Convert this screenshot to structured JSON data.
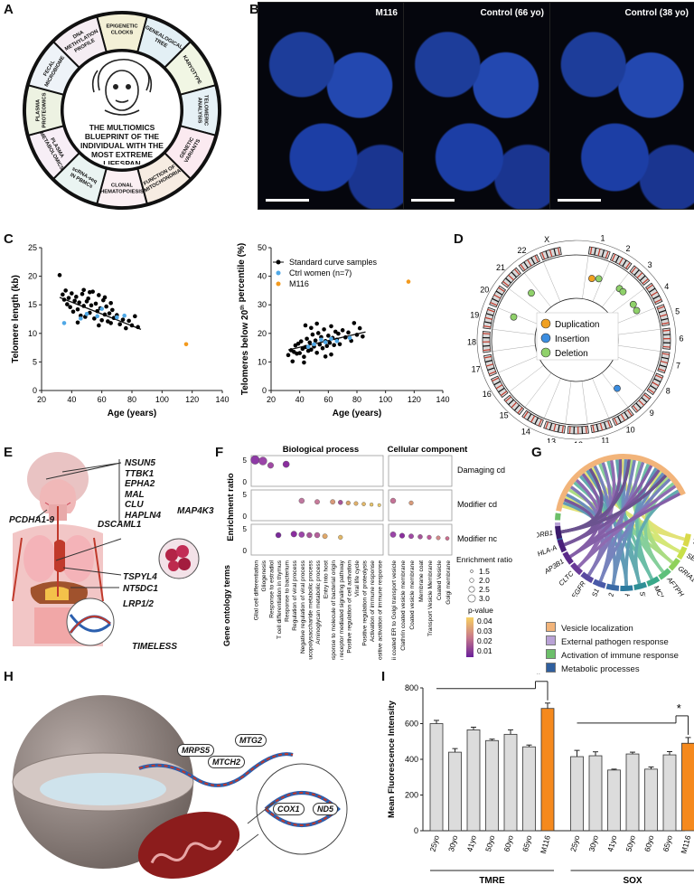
{
  "panel_letters": {
    "a": "A",
    "b": "B",
    "c": "C",
    "d": "D",
    "e": "E",
    "f": "F",
    "g": "G",
    "h": "H",
    "i": "I"
  },
  "panel_a": {
    "center_text": "THE MULTIOMICS BLUEPRINT OF THE INDIVIDUAL WITH THE MOST EXTREME LIFESPAN",
    "segments": [
      "EPIGENETIC CLOCKS",
      "GENEALOGICAL TREE",
      "KARYOTYPE",
      "TELOMERIC ANALYSIS",
      "GENETIC VARIANTS",
      "FUNCTION OF MITOCHONDRIA",
      "CLONAL HEMATOPOIESIS",
      "scRNA-seq IN PBMCs",
      "PLASMA METABOLOMICS",
      "PLASMA PROTEOMICS",
      "FECAL MICROBIOME",
      "DNA METHYLATION PROFILE"
    ]
  },
  "panel_b": {
    "images": [
      "M116",
      "Control (66 yo)",
      "Control (38 yo)"
    ]
  },
  "chart_data": [
    {
      "type": "scatter",
      "xlabel": "Age (years)",
      "ylabel": "Telomere length (kb)",
      "xlim": [
        20,
        140
      ],
      "ylim": [
        0,
        25
      ],
      "xticks": [
        20,
        40,
        60,
        80,
        100,
        120,
        140
      ],
      "yticks": [
        0,
        5,
        10,
        15,
        20,
        25
      ],
      "series": [
        {
          "name": "Standard curve samples",
          "color": "#000000",
          "points": [
            [
              32,
              20.2
            ],
            [
              34,
              16.8
            ],
            [
              35,
              15.9
            ],
            [
              36,
              17.5
            ],
            [
              37,
              15.1
            ],
            [
              38,
              16.2
            ],
            [
              39,
              14.6
            ],
            [
              40,
              17.0
            ],
            [
              41,
              13.8
            ],
            [
              42,
              15.7
            ],
            [
              43,
              16.4
            ],
            [
              44,
              14.2
            ],
            [
              45,
              15.4
            ],
            [
              46,
              13.1
            ],
            [
              47,
              16.9
            ],
            [
              48,
              14.8
            ],
            [
              49,
              12.9
            ],
            [
              50,
              15.6
            ],
            [
              51,
              16.1
            ],
            [
              52,
              13.6
            ],
            [
              53,
              14.9
            ],
            [
              54,
              17.3
            ],
            [
              55,
              12.6
            ],
            [
              56,
              15.2
            ],
            [
              57,
              13.9
            ],
            [
              58,
              16.7
            ],
            [
              59,
              14.4
            ],
            [
              60,
              12.3
            ],
            [
              61,
              15.8
            ],
            [
              62,
              13.3
            ],
            [
              63,
              14.7
            ],
            [
              64,
              12.1
            ],
            [
              65,
              13.5
            ],
            [
              66,
              11.8
            ],
            [
              67,
              14.1
            ],
            [
              68,
              12.7
            ],
            [
              70,
              13.2
            ],
            [
              72,
              11.6
            ],
            [
              74,
              12.4
            ],
            [
              76,
              10.9
            ],
            [
              78,
              12.2
            ],
            [
              80,
              11.4
            ],
            [
              82,
              13.0
            ],
            [
              84,
              11.1
            ],
            [
              44,
              11.9
            ],
            [
              48,
              17.6
            ],
            [
              52,
              17.2
            ],
            [
              58,
              11.4
            ],
            [
              62,
              16.3
            ],
            [
              66,
              15.3
            ]
          ]
        },
        {
          "name": "Ctrl women (n=7)",
          "color": "#4fa8e6",
          "points": [
            [
              35,
              11.8
            ],
            [
              46,
              12.6
            ],
            [
              50,
              13.4
            ],
            [
              57,
              13.0
            ],
            [
              60,
              14.3
            ],
            [
              70,
              12.8
            ],
            [
              75,
              13.1
            ]
          ]
        },
        {
          "name": "M116",
          "color": "#f39a1e",
          "points": [
            [
              116,
              8.1
            ]
          ]
        }
      ],
      "regression": [
        [
          32,
          16.3
        ],
        [
          86,
          10.7
        ]
      ]
    },
    {
      "type": "scatter",
      "xlabel": "Age (years)",
      "ylabel": "Telomeres below 20th percentile (%)",
      "ylabel_sup": "th",
      "xlim": [
        20,
        140
      ],
      "ylim": [
        0,
        50
      ],
      "xticks": [
        20,
        40,
        60,
        80,
        100,
        120,
        140
      ],
      "yticks": [
        0,
        10,
        20,
        30,
        40,
        50
      ],
      "series": [
        {
          "name": "Standard curve samples",
          "color": "#000000",
          "points": [
            [
              32,
              12.4
            ],
            [
              34,
              14.1
            ],
            [
              35,
              10.2
            ],
            [
              36,
              13.5
            ],
            [
              37,
              15.8
            ],
            [
              38,
              12.9
            ],
            [
              39,
              16.4
            ],
            [
              40,
              13.1
            ],
            [
              41,
              17.2
            ],
            [
              42,
              14.6
            ],
            [
              43,
              11.8
            ],
            [
              44,
              15.2
            ],
            [
              45,
              18.1
            ],
            [
              46,
              13.9
            ],
            [
              47,
              16.8
            ],
            [
              48,
              14.3
            ],
            [
              49,
              19.6
            ],
            [
              50,
              15.4
            ],
            [
              51,
              17.5
            ],
            [
              52,
              13.2
            ],
            [
              53,
              20.1
            ],
            [
              54,
              16.1
            ],
            [
              55,
              18.7
            ],
            [
              56,
              14.8
            ],
            [
              57,
              21.4
            ],
            [
              58,
              17.3
            ],
            [
              59,
              15.6
            ],
            [
              60,
              19.2
            ],
            [
              61,
              16.7
            ],
            [
              62,
              22.5
            ],
            [
              63,
              18.4
            ],
            [
              64,
              15.9
            ],
            [
              65,
              20.6
            ],
            [
              66,
              17.8
            ],
            [
              67,
              19.9
            ],
            [
              68,
              16.2
            ],
            [
              70,
              21.1
            ],
            [
              72,
              18.6
            ],
            [
              74,
              20.3
            ],
            [
              76,
              17.4
            ],
            [
              78,
              23.6
            ],
            [
              80,
              19.5
            ],
            [
              82,
              21.8
            ],
            [
              84,
              18.9
            ],
            [
              44,
              22.8
            ],
            [
              48,
              21.9
            ],
            [
              52,
              23.4
            ],
            [
              58,
              11.9
            ],
            [
              62,
              12.6
            ],
            [
              43,
              9.8
            ]
          ]
        },
        {
          "name": "Ctrl women (n=7)",
          "color": "#4fa8e6",
          "points": [
            [
              46,
              15.3
            ],
            [
              50,
              16.2
            ],
            [
              55,
              17.8
            ],
            [
              58,
              16.9
            ],
            [
              62,
              18.1
            ],
            [
              66,
              17.3
            ],
            [
              75,
              18.4
            ]
          ]
        },
        {
          "name": "M116",
          "color": "#f39a1e",
          "points": [
            [
              116,
              38.1
            ]
          ]
        }
      ],
      "regression": [
        [
          32,
          14.2
        ],
        [
          86,
          20.5
        ]
      ]
    },
    {
      "type": "bar",
      "ylabel": "Mean Fluorescence Intensity",
      "ylim": [
        0,
        800
      ],
      "yticks": [
        0,
        200,
        400,
        600,
        800
      ],
      "groups": [
        {
          "name": "TMRE",
          "categories": [
            "25yo",
            "30yo",
            "41yo",
            "50yo",
            "60yo",
            "65yo",
            "M116"
          ],
          "values": [
            600,
            440,
            565,
            505,
            540,
            470,
            685
          ],
          "errors": [
            18,
            20,
            15,
            8,
            25,
            10,
            30
          ]
        },
        {
          "name": "SOX",
          "categories": [
            "25yo",
            "30yo",
            "41yo",
            "50yo",
            "60yo",
            "65yo",
            "M116"
          ],
          "values": [
            415,
            420,
            340,
            430,
            345,
            425,
            490
          ],
          "errors": [
            35,
            22,
            5,
            10,
            12,
            18,
            32
          ]
        }
      ],
      "colors": {
        "bar": "#dcdcdc",
        "highlight": "#f5891d"
      },
      "significance": "*"
    }
  ],
  "panel_d": {
    "chromosomes": [
      "1",
      "2",
      "3",
      "4",
      "5",
      "6",
      "7",
      "8",
      "9",
      "10",
      "11",
      "12",
      "13",
      "14",
      "15",
      "16",
      "17",
      "18",
      "19",
      "20",
      "21",
      "22",
      "X"
    ],
    "legend": [
      {
        "label": "Duplication",
        "color": "#f0a020"
      },
      {
        "label": "Insertion",
        "color": "#3b8de0"
      },
      {
        "label": "Deletion",
        "color": "#8fd16a"
      }
    ]
  },
  "panel_e": {
    "genes": [
      "NSUN5",
      "TTBK1",
      "EPHA2",
      "MAL",
      "CLU",
      "HAPLN4"
    ],
    "labels": {
      "pcdha": "PCDHA1-9",
      "dscaml": "DSCAML1",
      "map4k3": "MAP4K3",
      "tspyl": "TSPYL4",
      "nt5dc": "NT5DC1",
      "lrp": "LRP1/2",
      "timeless": "TIMELESS"
    }
  },
  "panel_f": {
    "col_headers": [
      "Biological process",
      "Cellular component"
    ],
    "row_labels": [
      "Damaging cd",
      "Modifier cd",
      "Modifier nc"
    ],
    "ylabel": "Enrichment ratio",
    "xlabel": "Gene ontology terms",
    "bp_terms": [
      "Glial cell differentiation",
      "Gliogenesis",
      "Response to estradiol",
      "T cell differentiation in thymus",
      "Response to bacterium",
      "Regulation of viral process",
      "Negative regulation of viral process",
      "Mucopolysaccharide metabolic process",
      "Aminoglycan metabolic process",
      "Entry into host",
      "Response to molecule of bacterial origin",
      "Antigen receptor mediated signaling pathway",
      "Positive regulation of cell activation",
      "Viral life cycle",
      "Positive regulation of proteolysis",
      "Activation of immune response",
      "Positive activation of immune response"
    ],
    "cc_terms": [
      "Copii coated ER to Golgi transport vesicle",
      "Clathrin coated vesicle membrane",
      "Coated vesicle membrane",
      "Membrane coat",
      "Transport Vesicle Membrane",
      "Coated Vesicle",
      "Golgi membrane"
    ],
    "size_legend_title": "Enrichment ratio",
    "size_legend": [
      "1.5",
      "2.0",
      "2.5",
      "3.0"
    ],
    "color_legend_title": "p-value",
    "color_legend": [
      "0.04",
      "0.03",
      "0.02",
      "0.01"
    ],
    "yticks": [
      "0",
      "5"
    ]
  },
  "panel_g": {
    "genes": [
      "TRM5",
      "SEC13",
      "GRIA1",
      "AFTPH",
      "MCRIP",
      "SEC23A",
      "HLA-C",
      "BCL2",
      "AP1S1",
      "EGFR",
      "CLTC",
      "AP3B1",
      "HLA-A",
      "HLA-DRB1"
    ],
    "legend": [
      {
        "label": "Vesicle localization",
        "color": "#f2b47a"
      },
      {
        "label": "External pathogen response",
        "color": "#b9a2d6"
      },
      {
        "label": "Activation of immune response",
        "color": "#6cbf6a"
      },
      {
        "label": "Metabolic processes",
        "color": "#2f5f9e"
      }
    ]
  },
  "panel_h": {
    "genes": [
      "MRPS5",
      "MTCH2",
      "MTG2",
      "COX1",
      "ND5"
    ]
  }
}
